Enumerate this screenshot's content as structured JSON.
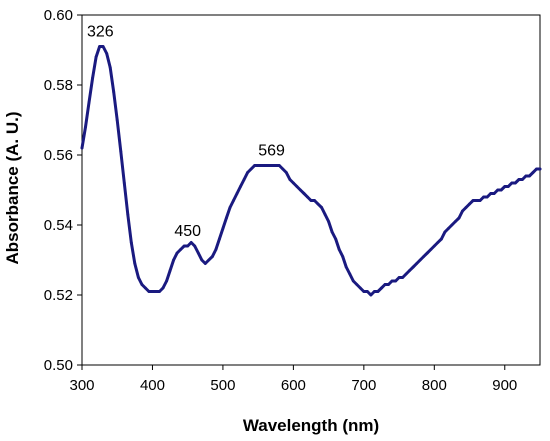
{
  "chart_data": {
    "type": "line",
    "title": "",
    "xlabel": "Wavelength (nm)",
    "ylabel": "Absorbance (A. U.)",
    "xlim": [
      300,
      950
    ],
    "ylim": [
      0.5,
      0.6
    ],
    "xticks": [
      "300",
      "400",
      "500",
      "600",
      "700",
      "800",
      "900"
    ],
    "yticks": [
      "0.50",
      "0.52",
      "0.54",
      "0.56",
      "0.58",
      "0.60"
    ],
    "grid": false,
    "legend": "none",
    "line_color": "#1a1a80",
    "series": [
      {
        "x": [
          300,
          305,
          310,
          315,
          320,
          325,
          330,
          335,
          340,
          345,
          350,
          355,
          360,
          365,
          370,
          375,
          380,
          385,
          390,
          395,
          400,
          405,
          410,
          415,
          420,
          425,
          430,
          435,
          440,
          445,
          450,
          455,
          460,
          465,
          470,
          475,
          480,
          485,
          490,
          495,
          500,
          505,
          510,
          515,
          520,
          525,
          530,
          535,
          540,
          545,
          550,
          555,
          560,
          565,
          570,
          575,
          580,
          585,
          590,
          595,
          600,
          605,
          610,
          615,
          620,
          625,
          630,
          635,
          640,
          645,
          650,
          655,
          660,
          665,
          670,
          675,
          680,
          685,
          690,
          695,
          700,
          705,
          710,
          715,
          720,
          725,
          730,
          735,
          740,
          745,
          750,
          755,
          760,
          765,
          770,
          775,
          780,
          785,
          790,
          795,
          800,
          805,
          810,
          815,
          820,
          825,
          830,
          835,
          840,
          845,
          850,
          855,
          860,
          865,
          870,
          875,
          880,
          885,
          890,
          895,
          900,
          905,
          910,
          915,
          920,
          925,
          930,
          935,
          940,
          945,
          950
        ],
        "values": [
          0.562,
          0.568,
          0.575,
          0.582,
          0.588,
          0.591,
          0.591,
          0.589,
          0.585,
          0.578,
          0.57,
          0.561,
          0.552,
          0.543,
          0.535,
          0.529,
          0.525,
          0.523,
          0.522,
          0.521,
          0.521,
          0.521,
          0.521,
          0.522,
          0.524,
          0.527,
          0.53,
          0.532,
          0.533,
          0.534,
          0.534,
          0.535,
          0.534,
          0.532,
          0.53,
          0.529,
          0.53,
          0.531,
          0.533,
          0.536,
          0.539,
          0.542,
          0.545,
          0.547,
          0.549,
          0.551,
          0.553,
          0.555,
          0.556,
          0.557,
          0.557,
          0.557,
          0.557,
          0.557,
          0.557,
          0.557,
          0.557,
          0.556,
          0.555,
          0.553,
          0.552,
          0.551,
          0.55,
          0.549,
          0.548,
          0.547,
          0.547,
          0.546,
          0.545,
          0.543,
          0.541,
          0.538,
          0.536,
          0.533,
          0.531,
          0.528,
          0.526,
          0.524,
          0.523,
          0.522,
          0.521,
          0.521,
          0.52,
          0.521,
          0.521,
          0.522,
          0.523,
          0.523,
          0.524,
          0.524,
          0.525,
          0.525,
          0.526,
          0.527,
          0.528,
          0.529,
          0.53,
          0.531,
          0.532,
          0.533,
          0.534,
          0.535,
          0.536,
          0.538,
          0.539,
          0.54,
          0.541,
          0.542,
          0.544,
          0.545,
          0.546,
          0.547,
          0.547,
          0.547,
          0.548,
          0.548,
          0.549,
          0.549,
          0.55,
          0.55,
          0.551,
          0.551,
          0.552,
          0.552,
          0.553,
          0.553,
          0.554,
          0.554,
          0.555,
          0.556,
          0.556
        ]
      }
    ],
    "annotations": [
      {
        "text": "326",
        "x": 326,
        "y": 0.591
      },
      {
        "text": "450",
        "x": 450,
        "y": 0.534
      },
      {
        "text": "569",
        "x": 569,
        "y": 0.557
      }
    ]
  }
}
